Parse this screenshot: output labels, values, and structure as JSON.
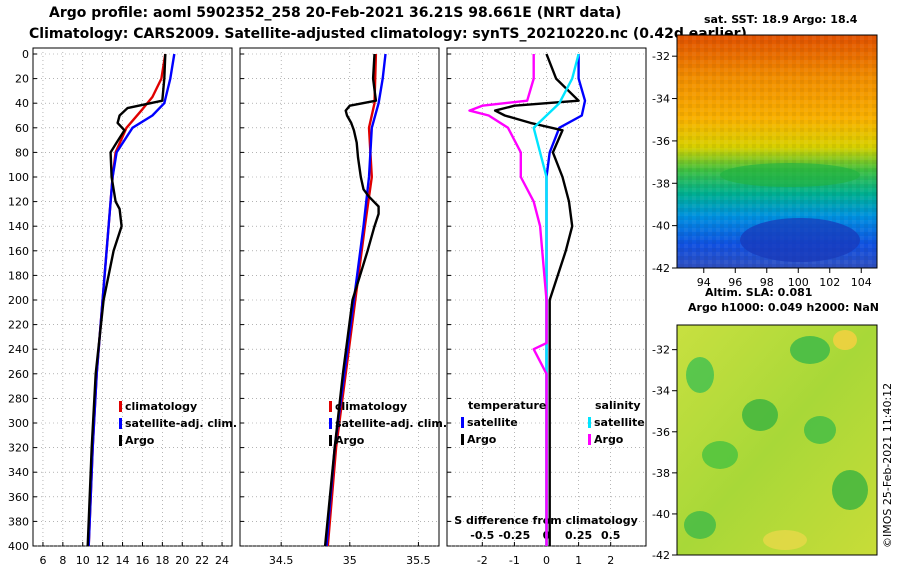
{
  "titles": {
    "line1": "Argo profile: aoml 5902352_258 20-Feb-2021 36.21S 98.661E (NRT data)",
    "line2": "Climatology: CARS2009. Satellite-adjusted climatology: synTS_20210220.nc (0.42d earlier)"
  },
  "colors": {
    "climatology": "#e00000",
    "satellite": "#0000ff",
    "argo": "#000000",
    "sat_salinity": "#00e5ff",
    "argo_salinity": "#ff00ff"
  },
  "chart_data": [
    {
      "type": "line",
      "name": "temperature",
      "ylim": [
        400,
        0
      ],
      "xlim": [
        5,
        25
      ],
      "xticks": [
        "6",
        "8",
        "10",
        "12",
        "14",
        "16",
        "18",
        "20",
        "22",
        "24"
      ],
      "yticks": [
        "0",
        "20",
        "40",
        "60",
        "80",
        "100",
        "120",
        "140",
        "160",
        "180",
        "200",
        "220",
        "240",
        "260",
        "280",
        "300",
        "320",
        "340",
        "360",
        "380",
        "400"
      ],
      "legend": [
        "climatology",
        "satellite-adj. clim.",
        "Argo"
      ],
      "series": [
        {
          "name": "climatology",
          "depth": [
            0,
            20,
            35,
            45,
            60,
            80,
            100,
            140,
            200,
            260,
            320,
            400
          ],
          "values": [
            18.3,
            17.9,
            17.0,
            16.0,
            14.4,
            13.3,
            13.0,
            12.6,
            12.0,
            11.4,
            11.0,
            10.6
          ]
        },
        {
          "name": "satellite-adj. clim.",
          "depth": [
            0,
            20,
            40,
            50,
            60,
            80,
            100,
            140,
            200,
            260,
            320,
            400
          ],
          "values": [
            19.2,
            18.8,
            18.2,
            17.0,
            15.0,
            13.4,
            13.0,
            12.6,
            12.0,
            11.4,
            11.0,
            10.6
          ]
        },
        {
          "name": "Argo",
          "depth": [
            0,
            20,
            38,
            44,
            50,
            56,
            62,
            72,
            80,
            100,
            120,
            126,
            140,
            160,
            200,
            260,
            320,
            400
          ],
          "values": [
            18.3,
            18.2,
            18.0,
            14.5,
            13.7,
            13.5,
            14.2,
            13.4,
            12.8,
            12.9,
            13.3,
            13.7,
            13.9,
            13.1,
            12.1,
            11.3,
            10.9,
            10.5
          ]
        }
      ]
    },
    {
      "type": "line",
      "name": "salinity",
      "ylim": [
        400,
        0
      ],
      "xlim": [
        34.2,
        35.65
      ],
      "xticks": [
        "34.5",
        "35",
        "35.5"
      ],
      "legend": [
        "climatology",
        "satellite-adj. clim.",
        "Argo"
      ],
      "series": [
        {
          "name": "climatology",
          "depth": [
            0,
            40,
            60,
            100,
            140,
            200,
            260,
            320,
            400
          ],
          "values": [
            35.19,
            35.18,
            35.14,
            35.16,
            35.11,
            35.04,
            34.97,
            34.9,
            34.84
          ]
        },
        {
          "name": "satellite-adj. clim.",
          "depth": [
            0,
            20,
            40,
            60,
            100,
            140,
            200,
            260,
            320,
            400
          ],
          "values": [
            35.26,
            35.24,
            35.21,
            35.16,
            35.14,
            35.1,
            35.03,
            34.96,
            34.89,
            34.83
          ]
        },
        {
          "name": "Argo",
          "depth": [
            0,
            20,
            38,
            42,
            46,
            50,
            56,
            62,
            72,
            84,
            92,
            100,
            110,
            116,
            124,
            130,
            140,
            160,
            200,
            260,
            320,
            400
          ],
          "values": [
            35.18,
            35.17,
            35.19,
            35.0,
            34.97,
            34.98,
            35.01,
            35.03,
            35.05,
            35.06,
            35.07,
            35.08,
            35.1,
            35.14,
            35.21,
            35.21,
            35.18,
            35.13,
            35.02,
            34.95,
            34.89,
            34.82
          ]
        }
      ]
    },
    {
      "type": "line",
      "name": "difference",
      "ylim": [
        400,
        0
      ],
      "xlim": [
        -3.1,
        3.1
      ],
      "xticks_bottom": [
        "-2",
        "-1",
        "0",
        "1",
        "2"
      ],
      "xticks_inner": [
        "-0.5",
        "-0.25",
        "0",
        "0.25",
        "0.5"
      ],
      "inner_label": "S difference from climatology",
      "legend_temperature": {
        "heading": "temperature",
        "items": [
          "satellite",
          "Argo"
        ]
      },
      "legend_salinity": {
        "heading": "salinity",
        "items": [
          "satellite",
          "Argo"
        ]
      },
      "series": [
        {
          "name": "temperature satellite",
          "depth": [
            0,
            20,
            38,
            50,
            60,
            80,
            100,
            140,
            200,
            260,
            320,
            400
          ],
          "values": [
            1.0,
            1.0,
            1.2,
            1.1,
            0.4,
            0.1,
            0.0,
            0.0,
            0.0,
            0.0,
            0.0,
            0.0
          ]
        },
        {
          "name": "temperature Argo",
          "depth": [
            0,
            20,
            38,
            42,
            46,
            50,
            56,
            62,
            80,
            100,
            120,
            140,
            160,
            200,
            260,
            320,
            400
          ],
          "values": [
            0.0,
            0.3,
            1.0,
            -1.0,
            -1.6,
            -1.3,
            -0.5,
            0.5,
            0.2,
            0.5,
            0.7,
            0.8,
            0.6,
            0.1,
            0.1,
            0.1,
            0.1
          ]
        },
        {
          "name": "salinity satellite",
          "depth": [
            0,
            20,
            40,
            60,
            80,
            100,
            140,
            200,
            260,
            320,
            400
          ],
          "values": [
            0.25,
            0.2,
            0.1,
            -0.1,
            -0.05,
            0.0,
            0.0,
            0.0,
            0.0,
            0.0,
            0.0
          ]
        },
        {
          "name": "salinity Argo",
          "depth": [
            0,
            20,
            38,
            42,
            46,
            50,
            60,
            80,
            100,
            120,
            140,
            200,
            235,
            240,
            260,
            320,
            400
          ],
          "values": [
            -0.1,
            -0.1,
            -0.15,
            -0.5,
            -0.6,
            -0.45,
            -0.3,
            -0.2,
            -0.2,
            -0.1,
            -0.05,
            0.0,
            0.0,
            -0.1,
            0.0,
            0.0,
            0.0
          ]
        }
      ]
    }
  ],
  "maps": {
    "sst": {
      "title": "sat. SST: 18.9 Argo: 18.4",
      "xticks": [
        "94",
        "96",
        "98",
        "100",
        "102",
        "104"
      ],
      "yticks": [
        "-32",
        "-34",
        "-36",
        "-38",
        "-40",
        "-42"
      ]
    },
    "sla": {
      "title_line1": "Altim. SLA: 0.081",
      "title_line2": "Argo h1000: 0.049 h2000: NaN",
      "yticks": [
        "-32",
        "-34",
        "-36",
        "-38",
        "-40",
        "-42"
      ]
    }
  },
  "stamp": "©IMOS 25-Feb-2021 11:40:12"
}
